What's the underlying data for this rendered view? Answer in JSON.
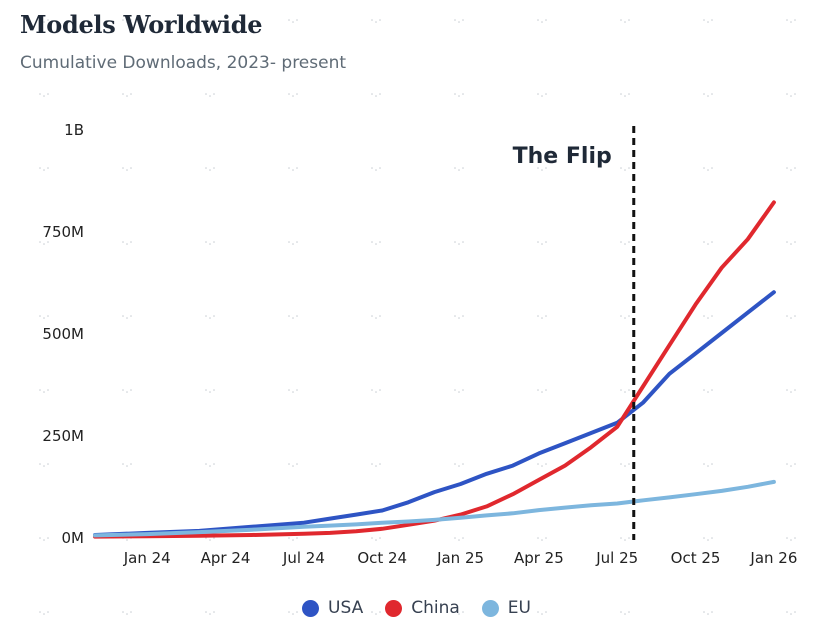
{
  "header": {
    "title": "Models Worldwide",
    "subtitle": "Cumulative Downloads, 2023- present"
  },
  "colors": {
    "text": "#1f2937",
    "tick_text": "#222222",
    "grid_dots": "#c9ced4"
  },
  "chart_data": {
    "type": "line",
    "title": "Models Worldwide",
    "subtitle": "Cumulative Downloads, 2023- present",
    "xlabel": "",
    "ylabel": "",
    "x_axis": {
      "type": "date",
      "range": [
        "2023-11",
        "2026-02"
      ],
      "ticks": [
        {
          "label": "Jan 24",
          "value": "2024-01"
        },
        {
          "label": "Apr 24",
          "value": "2024-04"
        },
        {
          "label": "Jul 24",
          "value": "2024-07"
        },
        {
          "label": "Oct 24",
          "value": "2024-10"
        },
        {
          "label": "Jan 25",
          "value": "2025-01"
        },
        {
          "label": "Apr 25",
          "value": "2025-04"
        },
        {
          "label": "Jul 25",
          "value": "2025-07"
        },
        {
          "label": "Oct 25",
          "value": "2025-10"
        },
        {
          "label": "Jan 26",
          "value": "2026-01"
        }
      ]
    },
    "y_axis": {
      "range": [
        0,
        1000000000
      ],
      "ticks": [
        {
          "label": "0M",
          "value": 0
        },
        {
          "label": "250M",
          "value": 250000000
        },
        {
          "label": "500M",
          "value": 500000000
        },
        {
          "label": "750M",
          "value": 750000000
        },
        {
          "label": "1B",
          "value": 1000000000
        }
      ]
    },
    "grid": "dotted",
    "legend_position": "bottom-center",
    "annotations": [
      {
        "type": "vline",
        "x": "2025-07-20",
        "text": "The Flip",
        "style": "dashed",
        "color": "#111111"
      }
    ],
    "series": [
      {
        "name": "USA",
        "color": "#2e54c4",
        "points": [
          [
            "2023-11",
            5000000
          ],
          [
            "2024-01",
            10000000
          ],
          [
            "2024-03",
            15000000
          ],
          [
            "2024-05",
            25000000
          ],
          [
            "2024-07",
            35000000
          ],
          [
            "2024-08",
            45000000
          ],
          [
            "2024-09",
            55000000
          ],
          [
            "2024-10",
            65000000
          ],
          [
            "2024-11",
            85000000
          ],
          [
            "2024-12",
            110000000
          ],
          [
            "2025-01",
            130000000
          ],
          [
            "2025-02",
            155000000
          ],
          [
            "2025-03",
            175000000
          ],
          [
            "2025-04",
            205000000
          ],
          [
            "2025-05",
            230000000
          ],
          [
            "2025-06",
            255000000
          ],
          [
            "2025-07",
            280000000
          ],
          [
            "2025-08",
            330000000
          ],
          [
            "2025-09",
            400000000
          ],
          [
            "2025-10",
            450000000
          ],
          [
            "2025-11",
            500000000
          ],
          [
            "2025-12",
            550000000
          ],
          [
            "2026-01",
            600000000
          ]
        ]
      },
      {
        "name": "China",
        "color": "#e0282e",
        "points": [
          [
            "2023-11",
            1000000
          ],
          [
            "2024-01",
            2000000
          ],
          [
            "2024-03",
            3000000
          ],
          [
            "2024-05",
            5000000
          ],
          [
            "2024-07",
            8000000
          ],
          [
            "2024-08",
            10000000
          ],
          [
            "2024-09",
            14000000
          ],
          [
            "2024-10",
            20000000
          ],
          [
            "2024-11",
            30000000
          ],
          [
            "2024-12",
            40000000
          ],
          [
            "2025-01",
            55000000
          ],
          [
            "2025-02",
            75000000
          ],
          [
            "2025-03",
            105000000
          ],
          [
            "2025-04",
            140000000
          ],
          [
            "2025-05",
            175000000
          ],
          [
            "2025-06",
            220000000
          ],
          [
            "2025-07",
            270000000
          ],
          [
            "2025-08",
            370000000
          ],
          [
            "2025-09",
            470000000
          ],
          [
            "2025-10",
            570000000
          ],
          [
            "2025-11",
            660000000
          ],
          [
            "2025-12",
            730000000
          ],
          [
            "2026-01",
            820000000
          ]
        ]
      },
      {
        "name": "EU",
        "color": "#7db6de",
        "points": [
          [
            "2023-11",
            4000000
          ],
          [
            "2024-01",
            7000000
          ],
          [
            "2024-03",
            12000000
          ],
          [
            "2024-05",
            18000000
          ],
          [
            "2024-07",
            25000000
          ],
          [
            "2024-08",
            28000000
          ],
          [
            "2024-09",
            31000000
          ],
          [
            "2024-10",
            35000000
          ],
          [
            "2024-11",
            38000000
          ],
          [
            "2024-12",
            42000000
          ],
          [
            "2025-01",
            47000000
          ],
          [
            "2025-02",
            53000000
          ],
          [
            "2025-03",
            58000000
          ],
          [
            "2025-04",
            66000000
          ],
          [
            "2025-05",
            72000000
          ],
          [
            "2025-06",
            78000000
          ],
          [
            "2025-07",
            82000000
          ],
          [
            "2025-08",
            90000000
          ],
          [
            "2025-09",
            97000000
          ],
          [
            "2025-10",
            105000000
          ],
          [
            "2025-11",
            113000000
          ],
          [
            "2025-12",
            123000000
          ],
          [
            "2026-01",
            135000000
          ]
        ]
      }
    ]
  }
}
